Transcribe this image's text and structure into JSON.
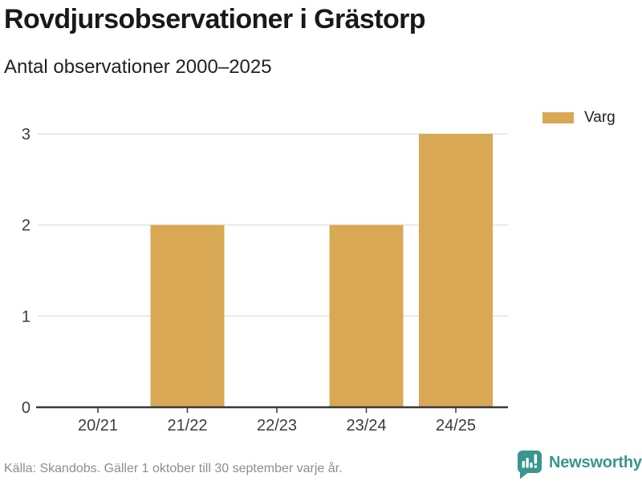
{
  "header": {
    "title": "Rovdjursobservationer i Grästorp",
    "subtitle": "Antal observationer 2000–2025"
  },
  "legend": {
    "items": [
      {
        "label": "Varg",
        "color": "#d9a855"
      }
    ]
  },
  "chart_data": {
    "type": "bar",
    "categories": [
      "20/21",
      "21/22",
      "22/23",
      "23/24",
      "24/25"
    ],
    "series": [
      {
        "name": "Varg",
        "color": "#d9a855",
        "values": [
          0,
          2,
          0,
          2,
          3
        ]
      }
    ],
    "title": "Rovdjursobservationer i Grästorp",
    "subtitle": "Antal observationer 2000–2025",
    "xlabel": "",
    "ylabel": "",
    "yticks": [
      0,
      1,
      2,
      3
    ],
    "ylim": [
      0,
      3
    ],
    "grid": true,
    "legend_position": "top-right"
  },
  "footer": {
    "source": "Källa: Skandobs. Gäller 1 oktober till 30 september varje år.",
    "brand": {
      "name": "Newsworthy",
      "color": "#38968f",
      "icon": "newsworthy-chart-bubble-icon"
    }
  },
  "colors": {
    "bar": "#d9a855",
    "teal": "#38968f",
    "grid": "#e3e3e3",
    "axis": "#3a3a3a",
    "axis_text": "#3c3c3c",
    "title_text": "#191919",
    "muted_text": "#8c8c97"
  }
}
